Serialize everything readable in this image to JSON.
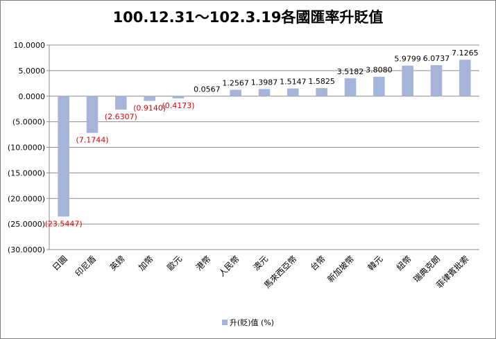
{
  "chart_data": {
    "type": "bar",
    "title": "100.12.31～102.3.19各國匯率升貶值",
    "categories": [
      "日圓",
      "印尼盾",
      "英鎊",
      "加幣",
      "歐元",
      "港幣",
      "人民幣",
      "澳元",
      "馬來西亞幣",
      "台幣",
      "新加坡幣",
      "韓元",
      "紐幣",
      "瑞典克朗",
      "菲律賓批索"
    ],
    "series": [
      {
        "name": "升(貶)值 (%)",
        "values": [
          -23.5447,
          -7.1744,
          -2.6307,
          -0.914,
          -0.4173,
          0.0567,
          1.2567,
          1.3987,
          1.5147,
          1.5825,
          3.5182,
          3.808,
          5.9799,
          6.0737,
          7.1265
        ],
        "labels": [
          "(23.5447)",
          "(7.1744)",
          "(2.6307)",
          "(0.9140)",
          "(0.4173)",
          "0.0567",
          "1.2567",
          "1.3987",
          "1.5147",
          "1.5825",
          "3.5182",
          "3.8080",
          "5.9799",
          "6.0737",
          "7.1265"
        ]
      }
    ],
    "ylim": [
      -30,
      10
    ],
    "ytick_values": [
      10,
      5,
      0,
      -5,
      -10,
      -15,
      -20,
      -25,
      -30
    ],
    "ytick_labels": [
      "10.0000",
      "5.0000",
      "0.0000",
      "(5.0000)",
      "(10.0000)",
      "(15.0000)",
      "(20.0000)",
      "(25.0000)",
      "(30.0000)"
    ],
    "xlabel": "",
    "ylabel": "",
    "grid": true,
    "legend_position": "bottom",
    "colors": {
      "bar": "#a5b4d8",
      "positive_label": "#000000",
      "negative_label": "#e00000",
      "gridline": "#8c8c8c",
      "axis": "#8c8c8c"
    }
  }
}
